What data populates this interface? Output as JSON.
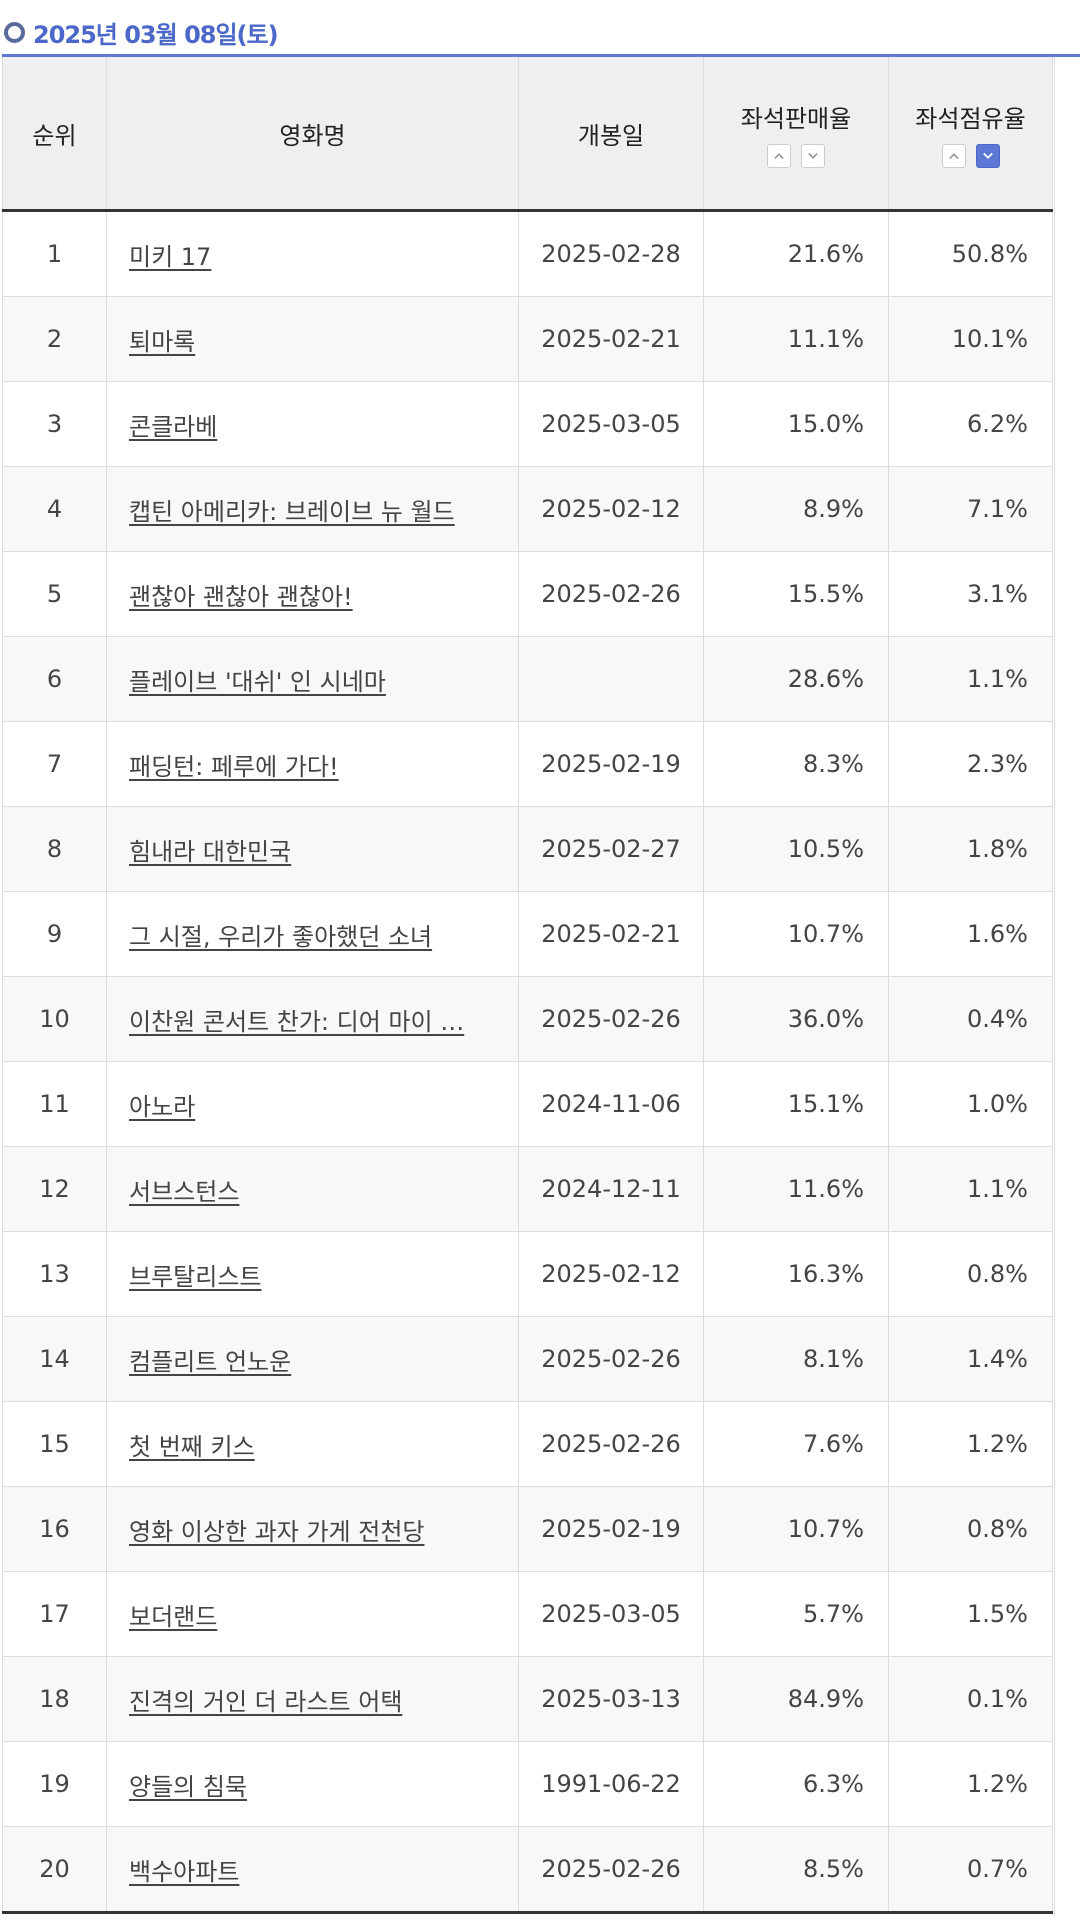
{
  "date_label": "2025년 03월 08일(토)",
  "columns": {
    "rank": "순위",
    "title": "영화명",
    "release": "개봉일",
    "seat_sales": "좌석판매율",
    "seat_share": "좌석점유율"
  },
  "sort": {
    "seat_sales": {
      "up": "sort-up-icon",
      "down": "sort-down-icon",
      "active": null
    },
    "seat_share": {
      "up": "sort-up-icon",
      "down": "sort-down-icon",
      "active": "down"
    },
    "active_color": "#5b79d4"
  },
  "rows": [
    {
      "rank": "1",
      "title": "미키 17",
      "release": "2025-02-28",
      "seat_sales": "21.6%",
      "seat_share": "50.8%"
    },
    {
      "rank": "2",
      "title": "퇴마록",
      "release": "2025-02-21",
      "seat_sales": "11.1%",
      "seat_share": "10.1%"
    },
    {
      "rank": "3",
      "title": "콘클라베",
      "release": "2025-03-05",
      "seat_sales": "15.0%",
      "seat_share": "6.2%"
    },
    {
      "rank": "4",
      "title": "캡틴 아메리카: 브레이브 뉴 월드",
      "release": "2025-02-12",
      "seat_sales": "8.9%",
      "seat_share": "7.1%"
    },
    {
      "rank": "5",
      "title": "괜찮아 괜찮아 괜찮아!",
      "release": "2025-02-26",
      "seat_sales": "15.5%",
      "seat_share": "3.1%"
    },
    {
      "rank": "6",
      "title": "플레이브 '대쉬' 인 시네마",
      "release": "",
      "seat_sales": "28.6%",
      "seat_share": "1.1%"
    },
    {
      "rank": "7",
      "title": "패딩턴: 페루에 가다!",
      "release": "2025-02-19",
      "seat_sales": "8.3%",
      "seat_share": "2.3%"
    },
    {
      "rank": "8",
      "title": "힘내라 대한민국",
      "release": "2025-02-27",
      "seat_sales": "10.5%",
      "seat_share": "1.8%"
    },
    {
      "rank": "9",
      "title": "그 시절, 우리가 좋아했던 소녀",
      "release": "2025-02-21",
      "seat_sales": "10.7%",
      "seat_share": "1.6%"
    },
    {
      "rank": "10",
      "title": "이찬원 콘서트 찬가: 디어 마이 …",
      "release": "2025-02-26",
      "seat_sales": "36.0%",
      "seat_share": "0.4%"
    },
    {
      "rank": "11",
      "title": "아노라",
      "release": "2024-11-06",
      "seat_sales": "15.1%",
      "seat_share": "1.0%"
    },
    {
      "rank": "12",
      "title": "서브스턴스",
      "release": "2024-12-11",
      "seat_sales": "11.6%",
      "seat_share": "1.1%"
    },
    {
      "rank": "13",
      "title": "브루탈리스트",
      "release": "2025-02-12",
      "seat_sales": "16.3%",
      "seat_share": "0.8%"
    },
    {
      "rank": "14",
      "title": "컴플리트 언노운",
      "release": "2025-02-26",
      "seat_sales": "8.1%",
      "seat_share": "1.4%"
    },
    {
      "rank": "15",
      "title": "첫 번째 키스",
      "release": "2025-02-26",
      "seat_sales": "7.6%",
      "seat_share": "1.2%"
    },
    {
      "rank": "16",
      "title": "영화 이상한 과자 가게 전천당",
      "release": "2025-02-19",
      "seat_sales": "10.7%",
      "seat_share": "0.8%"
    },
    {
      "rank": "17",
      "title": "보더랜드",
      "release": "2025-03-05",
      "seat_sales": "5.7%",
      "seat_share": "1.5%"
    },
    {
      "rank": "18",
      "title": "진격의 거인 더 라스트 어택",
      "release": "2025-03-13",
      "seat_sales": "84.9%",
      "seat_share": "0.1%"
    },
    {
      "rank": "19",
      "title": "양들의 침묵",
      "release": "1991-06-22",
      "seat_sales": "6.3%",
      "seat_share": "1.2%"
    },
    {
      "rank": "20",
      "title": "백수아파트",
      "release": "2025-02-26",
      "seat_sales": "8.5%",
      "seat_share": "0.7%"
    }
  ]
}
